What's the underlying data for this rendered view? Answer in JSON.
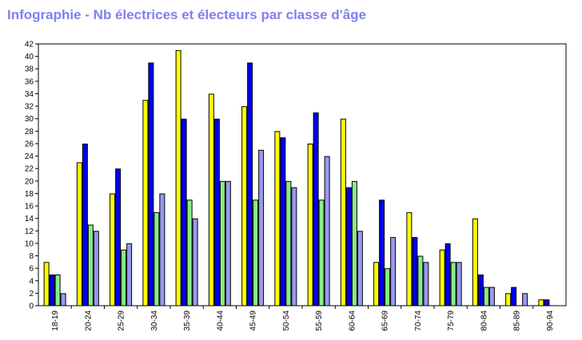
{
  "chart_data": {
    "type": "bar",
    "title": "Infographie - Nb électrices et électeurs par classe d'âge",
    "categories": [
      "18-19",
      "20-24",
      "25-29",
      "30-34",
      "35-39",
      "40-44",
      "45-49",
      "50-54",
      "55-59",
      "60-64",
      "65-69",
      "70-74",
      "75-79",
      "80-84",
      "85-89",
      "90-94"
    ],
    "series": [
      {
        "color": "#ffff00",
        "values": [
          7,
          23,
          18,
          33,
          41,
          34,
          32,
          28,
          26,
          30,
          7,
          15,
          9,
          14,
          2,
          1
        ]
      },
      {
        "color": "#0000ee",
        "values": [
          5,
          26,
          22,
          39,
          30,
          30,
          39,
          27,
          31,
          19,
          17,
          11,
          10,
          5,
          3,
          1
        ]
      },
      {
        "color": "#88ee88",
        "values": [
          5,
          13,
          9,
          15,
          17,
          20,
          17,
          20,
          17,
          20,
          6,
          8,
          7,
          3,
          0,
          0
        ]
      },
      {
        "color": "#9999ee",
        "values": [
          2,
          12,
          10,
          18,
          14,
          20,
          25,
          19,
          24,
          12,
          11,
          7,
          7,
          3,
          2,
          0
        ]
      }
    ],
    "ylim": [
      0,
      42
    ],
    "ytick_step": 2,
    "title_color": "#8080ee",
    "grid": false,
    "legend": "none"
  }
}
